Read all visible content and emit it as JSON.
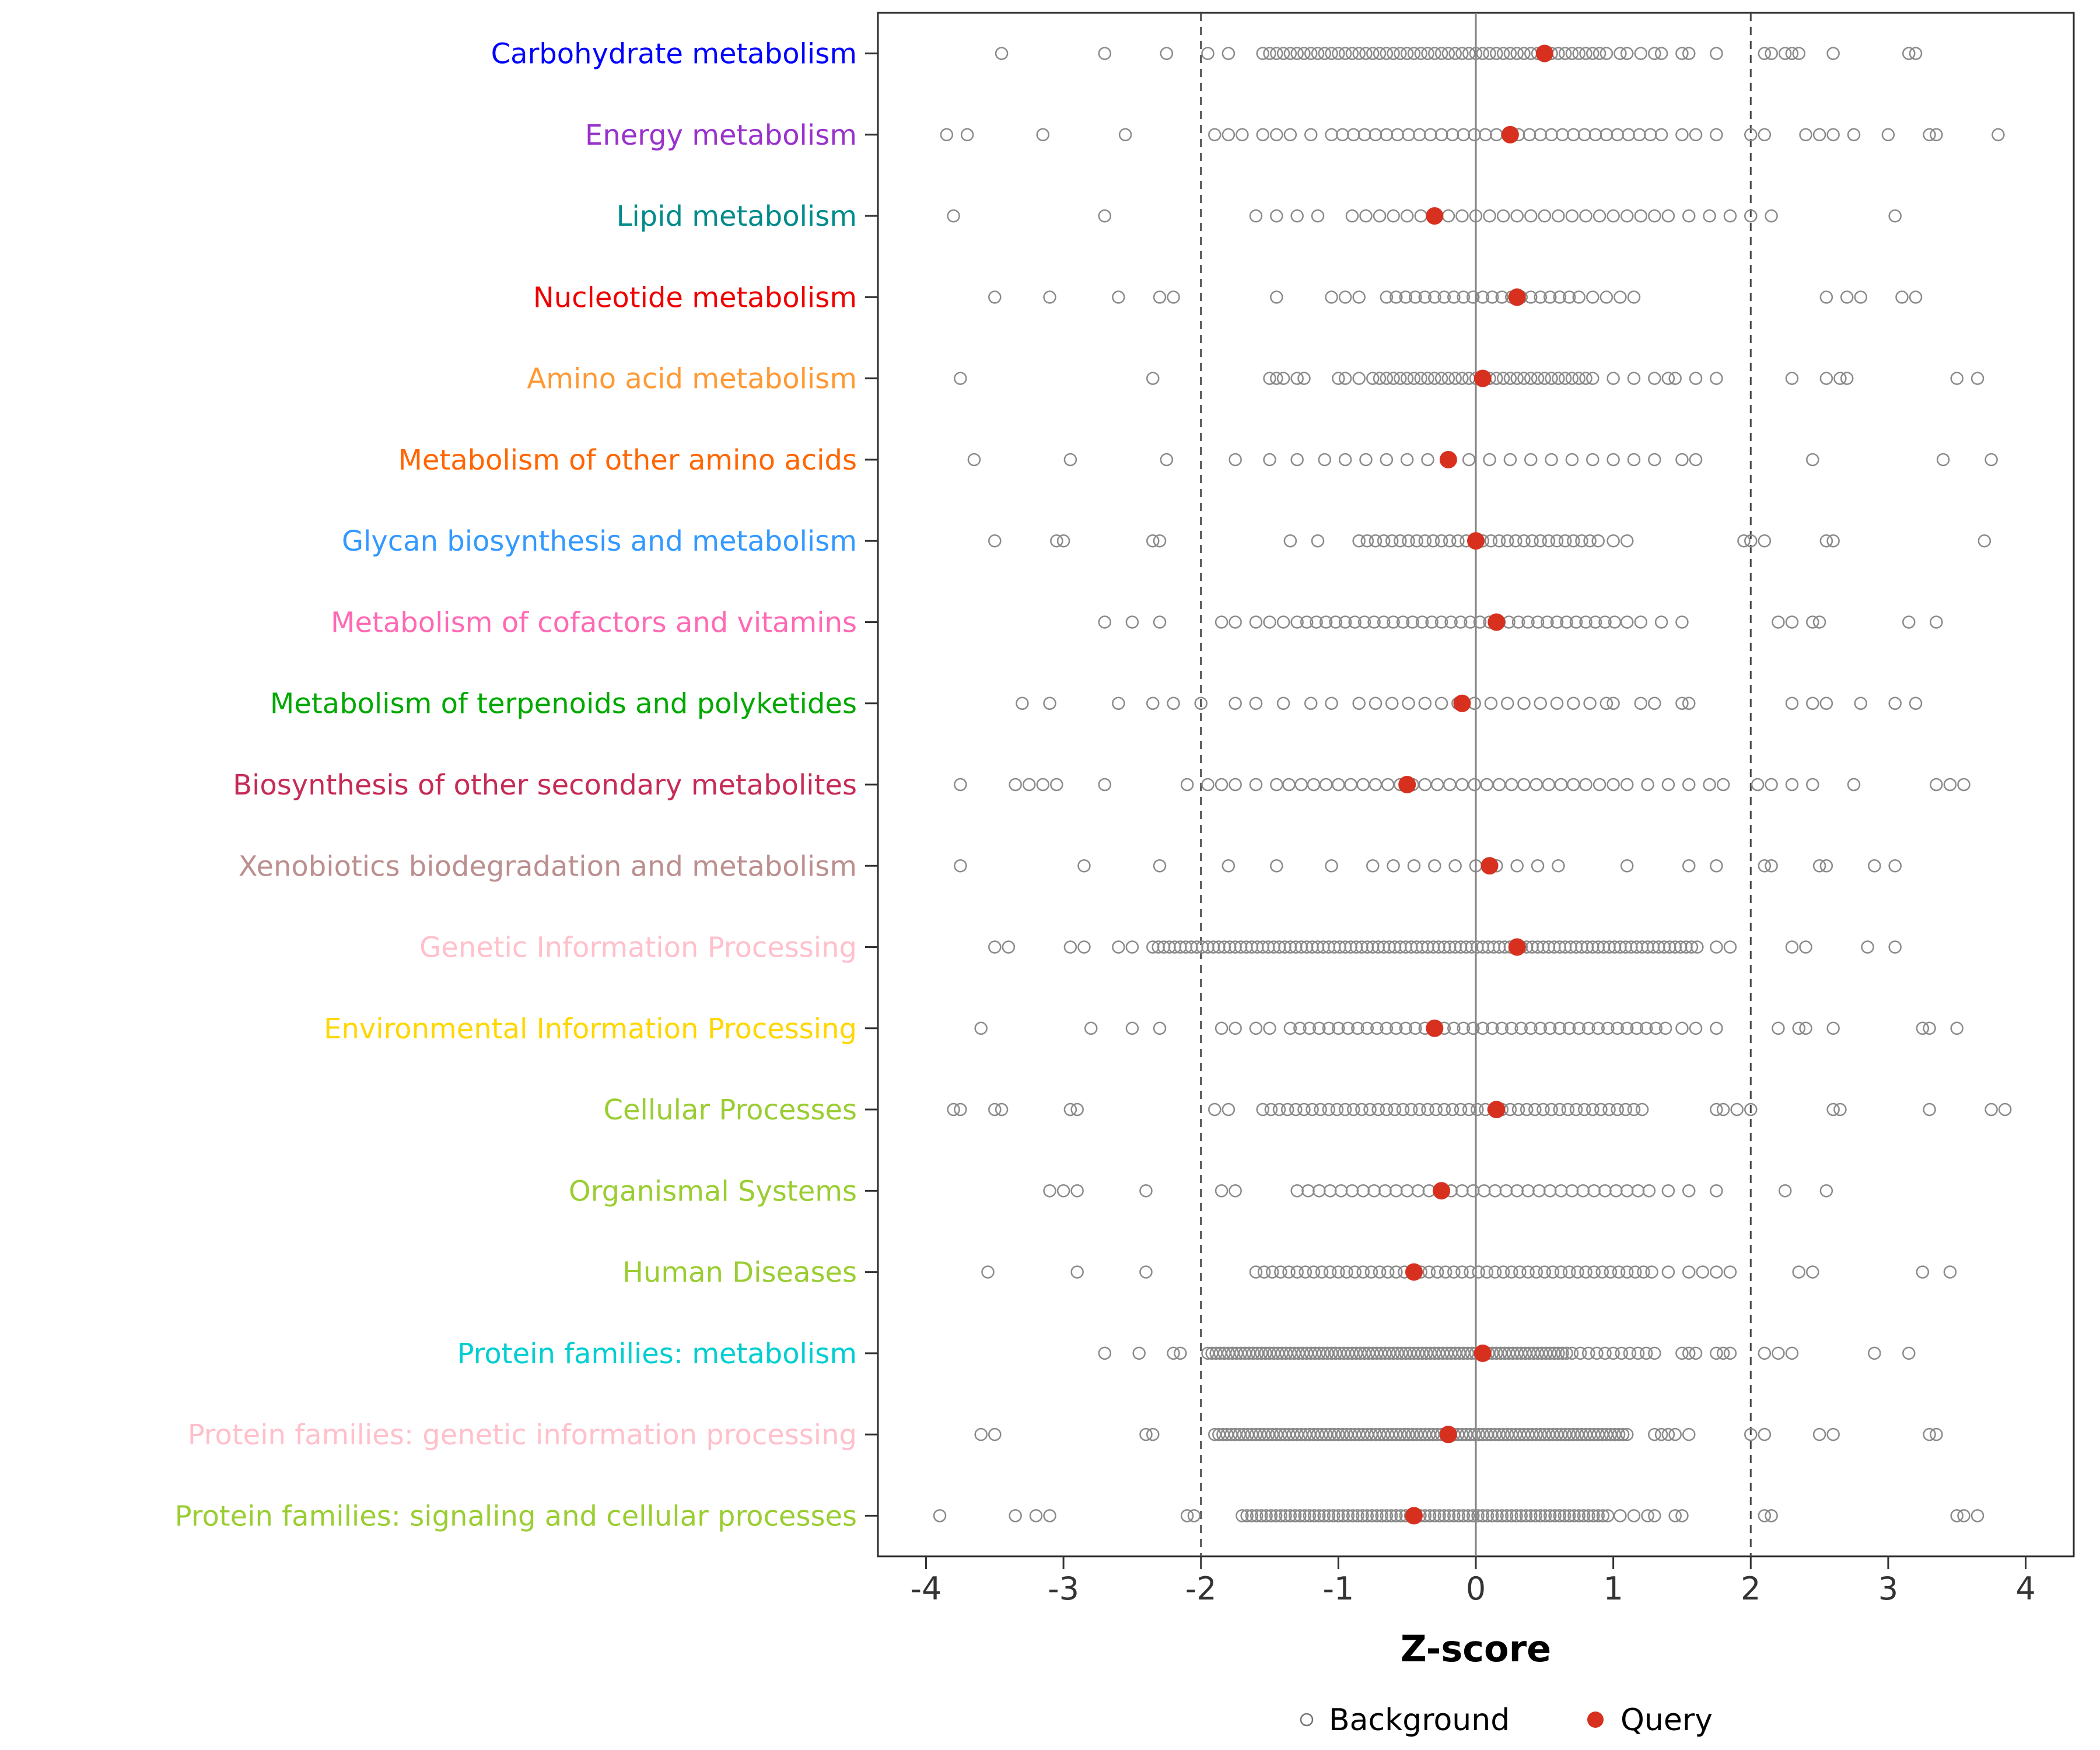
{
  "chart_data": {
    "type": "scatter",
    "title": "",
    "xlabel": "Z-score",
    "ylabel": "",
    "x_ticks": [
      -4,
      -3,
      -2,
      -1,
      0,
      1,
      2,
      3,
      4
    ],
    "xlim": [
      -4.35,
      4.35
    ],
    "grid": "off",
    "reference_lines": {
      "solid": [
        0
      ],
      "dashed": [
        -2,
        2
      ]
    },
    "background_color": "#8a8a8a",
    "query_color": "#d7301f",
    "panel_border_color": "#2b2b2b",
    "legend": [
      {
        "label": "Background",
        "marker": "open-circle",
        "color": "#737373"
      },
      {
        "label": "Query",
        "marker": "filled-circle",
        "color": "#d7301f"
      }
    ],
    "categories": [
      {
        "label": "Carbohydrate metabolism",
        "color": "#0000FF",
        "query": 0.5,
        "background_bands": [
          [
            -1.55,
            0.95,
            0.05
          ]
        ],
        "background_points": [
          -3.45,
          -2.7,
          -2.25,
          -1.95,
          -1.8,
          1.05,
          1.1,
          1.2,
          1.3,
          1.35,
          1.5,
          1.55,
          1.75,
          2.1,
          2.15,
          2.25,
          2.3,
          2.35,
          2.6,
          3.15,
          3.2
        ]
      },
      {
        "label": "Energy metabolism",
        "color": "#9932CC",
        "query": 0.25,
        "background_bands": [
          [
            -1.05,
            1.35,
            0.08
          ]
        ],
        "background_points": [
          -3.85,
          -3.7,
          -3.15,
          -2.55,
          -1.9,
          -1.8,
          -1.7,
          -1.55,
          -1.45,
          -1.35,
          -1.2,
          1.5,
          1.6,
          1.75,
          2.0,
          2.1,
          2.4,
          2.5,
          2.6,
          2.75,
          3.0,
          3.3,
          3.35,
          3.8
        ]
      },
      {
        "label": "Lipid metabolism",
        "color": "#008B8B",
        "query": -0.3,
        "background_bands": [
          [
            -0.9,
            1.4,
            0.1
          ]
        ],
        "background_points": [
          -3.8,
          -2.7,
          -1.6,
          -1.45,
          -1.3,
          -1.15,
          1.55,
          1.7,
          1.85,
          2.0,
          2.15,
          3.05
        ]
      },
      {
        "label": "Nucleotide metabolism",
        "color": "#EE0000",
        "query": 0.3,
        "background_bands": [
          [
            -0.65,
            0.75,
            0.07
          ]
        ],
        "background_points": [
          -3.5,
          -3.1,
          -2.6,
          -2.3,
          -2.2,
          -1.45,
          -1.05,
          -0.95,
          -0.85,
          0.85,
          0.95,
          1.05,
          1.15,
          2.55,
          2.7,
          2.8,
          3.1,
          3.2
        ]
      },
      {
        "label": "Amino acid metabolism",
        "color": "#FF9933",
        "query": 0.05,
        "background_bands": [
          [
            -0.75,
            0.85,
            0.05
          ]
        ],
        "background_points": [
          -3.75,
          -2.35,
          -1.5,
          -1.45,
          -1.4,
          -1.3,
          -1.25,
          -1.0,
          -0.95,
          -0.85,
          1.0,
          1.15,
          1.3,
          1.4,
          1.45,
          1.6,
          1.75,
          2.3,
          2.55,
          2.65,
          2.7,
          3.5,
          3.65
        ]
      },
      {
        "label": "Metabolism of other amino acids",
        "color": "#FF6600",
        "query": -0.2,
        "background_bands": [
          [
            -1.1,
            1.1,
            0.15
          ]
        ],
        "background_points": [
          -3.65,
          -2.95,
          -2.25,
          -1.75,
          -1.5,
          -1.3,
          1.3,
          1.5,
          1.6,
          2.45,
          3.4,
          3.75
        ]
      },
      {
        "label": "Glycan biosynthesis and metabolism",
        "color": "#3399FF",
        "query": 0.0,
        "background_bands": [
          [
            -0.85,
            0.9,
            0.06
          ]
        ],
        "background_points": [
          -3.5,
          -3.05,
          -3.0,
          -2.35,
          -2.3,
          -1.35,
          -1.15,
          1.0,
          1.1,
          1.95,
          2.0,
          2.1,
          2.55,
          2.6,
          3.7
        ]
      },
      {
        "label": "Metabolism of cofactors and vitamins",
        "color": "#FF69B4",
        "query": 0.15,
        "background_bands": [
          [
            -1.3,
            1.0,
            0.07
          ]
        ],
        "background_points": [
          -2.7,
          -2.5,
          -2.3,
          -1.85,
          -1.75,
          -1.6,
          -1.5,
          -1.4,
          1.1,
          1.2,
          1.35,
          1.5,
          2.2,
          2.3,
          2.45,
          2.5,
          3.15,
          3.35
        ]
      },
      {
        "label": "Metabolism of terpenoids and polyketides",
        "color": "#00A800",
        "query": -0.1,
        "background_bands": [
          [
            -0.85,
            0.9,
            0.12
          ]
        ],
        "background_points": [
          -3.3,
          -3.1,
          -2.6,
          -2.35,
          -2.2,
          -2.0,
          -1.75,
          -1.6,
          -1.4,
          -1.2,
          -1.05,
          1.0,
          1.2,
          1.3,
          1.5,
          1.55,
          2.3,
          2.45,
          2.55,
          2.8,
          3.05,
          3.2
        ]
      },
      {
        "label": "Biosynthesis of other secondary metabolites",
        "color": "#C62B56",
        "query": -0.5,
        "background_bands": [
          [
            -1.45,
            0.8,
            0.09
          ]
        ],
        "background_points": [
          -3.75,
          -3.35,
          -3.25,
          -3.15,
          -3.05,
          -2.7,
          -2.1,
          -1.95,
          -1.85,
          -1.75,
          -1.6,
          0.9,
          1.0,
          1.1,
          1.25,
          1.4,
          1.55,
          1.7,
          1.8,
          2.05,
          2.15,
          2.3,
          2.45,
          2.75,
          3.35,
          3.45,
          3.55
        ]
      },
      {
        "label": "Xenobiotics biodegradation and metabolism",
        "color": "#BC8F8F",
        "query": 0.1,
        "background_bands": [
          [
            -0.75,
            0.55,
            0.15
          ]
        ],
        "background_points": [
          -3.75,
          -2.85,
          -2.3,
          -1.8,
          -1.45,
          -1.05,
          1.1,
          1.55,
          1.75,
          2.1,
          2.15,
          2.5,
          2.55,
          2.9,
          3.05
        ]
      },
      {
        "label": "Genetic Information Processing",
        "color": "#FFC0CB",
        "query": 0.3,
        "background_bands": [
          [
            -2.35,
            1.6,
            0.04
          ]
        ],
        "background_points": [
          -3.5,
          -3.4,
          -2.95,
          -2.85,
          -2.6,
          -2.5,
          1.75,
          1.85,
          2.3,
          2.4,
          2.85,
          3.05
        ]
      },
      {
        "label": "Environmental Information Processing",
        "color": "#FFD700",
        "query": -0.3,
        "background_bands": [
          [
            -1.35,
            1.35,
            0.07
          ]
        ],
        "background_points": [
          -3.6,
          -2.8,
          -2.5,
          -2.3,
          -1.85,
          -1.75,
          -1.6,
          -1.5,
          1.5,
          1.6,
          1.75,
          2.2,
          2.35,
          2.4,
          2.6,
          3.25,
          3.3,
          3.5
        ]
      },
      {
        "label": "Cellular Processes",
        "color": "#9ACD32",
        "query": 0.15,
        "background_bands": [
          [
            -1.55,
            1.2,
            0.06
          ]
        ],
        "background_points": [
          -3.8,
          -3.75,
          -3.5,
          -3.45,
          -2.95,
          -2.9,
          -1.9,
          -1.8,
          1.75,
          1.8,
          1.9,
          2.0,
          2.6,
          2.65,
          3.3,
          3.75,
          3.85
        ]
      },
      {
        "label": "Organismal Systems",
        "color": "#9ACD32",
        "query": -0.25,
        "background_bands": [
          [
            -1.3,
            1.25,
            0.08
          ]
        ],
        "background_points": [
          -3.1,
          -3.0,
          -2.9,
          -2.4,
          -1.85,
          -1.75,
          1.4,
          1.55,
          1.75,
          2.25,
          2.55
        ]
      },
      {
        "label": "Human Diseases",
        "color": "#9ACD32",
        "query": -0.45,
        "background_bands": [
          [
            -1.6,
            1.3,
            0.06
          ]
        ],
        "background_points": [
          -3.55,
          -2.9,
          -2.4,
          1.4,
          1.55,
          1.65,
          1.75,
          1.85,
          2.35,
          2.45,
          3.25,
          3.45
        ]
      },
      {
        "label": "Protein families: metabolism",
        "color": "#00CED1",
        "query": 0.05,
        "background_bands": [
          [
            -1.95,
            0.65,
            0.03
          ],
          [
            0.7,
            1.3,
            0.06
          ]
        ],
        "background_points": [
          -2.7,
          -2.45,
          -2.2,
          -2.15,
          1.5,
          1.55,
          1.6,
          1.75,
          1.8,
          1.85,
          2.1,
          2.2,
          2.3,
          2.9,
          3.15
        ]
      },
      {
        "label": "Protein families: genetic information processing",
        "color": "#FFC0CB",
        "query": -0.2,
        "background_bands": [
          [
            -1.9,
            1.1,
            0.03
          ]
        ],
        "background_points": [
          -3.6,
          -3.5,
          -2.4,
          -2.35,
          1.3,
          1.35,
          1.4,
          1.45,
          1.55,
          2.0,
          2.1,
          2.5,
          2.6,
          3.3,
          3.35
        ]
      },
      {
        "label": "Protein families: signaling and cellular processes",
        "color": "#9ACD32",
        "query": -0.45,
        "background_bands": [
          [
            -1.7,
            0.95,
            0.035
          ]
        ],
        "background_points": [
          -3.9,
          -3.35,
          -3.2,
          -3.1,
          -2.1,
          -2.05,
          1.05,
          1.15,
          1.25,
          1.3,
          1.45,
          1.5,
          2.1,
          2.15,
          3.5,
          3.55,
          3.65
        ]
      }
    ]
  }
}
